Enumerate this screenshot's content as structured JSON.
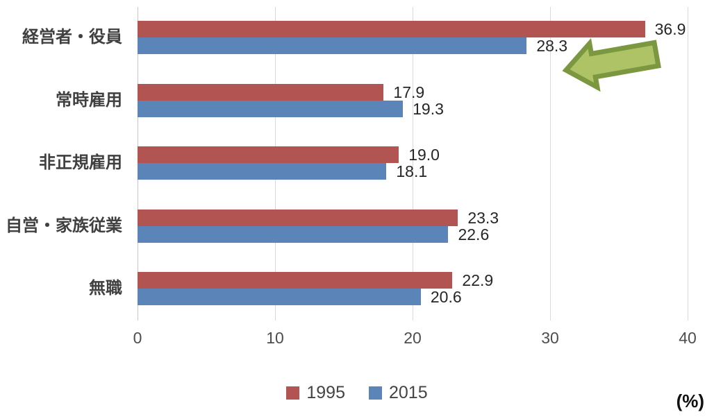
{
  "chart_data": {
    "type": "bar",
    "orientation": "horizontal",
    "title": "",
    "categories": [
      "経営者・役員",
      "常時雇用",
      "非正規雇用",
      "自営・家族従業",
      "無職"
    ],
    "series": [
      {
        "name": "1995",
        "color": "#b25451",
        "values": [
          36.9,
          17.9,
          19.0,
          23.3,
          22.9
        ],
        "labels": [
          "36.9",
          "17.9",
          "19.0",
          "23.3",
          "22.9"
        ]
      },
      {
        "name": "2015",
        "color": "#5b84b8",
        "values": [
          28.3,
          19.3,
          18.1,
          22.6,
          20.6
        ],
        "labels": [
          "28.3",
          "19.3",
          "18.1",
          "22.6",
          "20.6"
        ]
      }
    ],
    "xlim": [
      0,
      40
    ],
    "x_ticks": [
      "0",
      "10",
      "20",
      "30",
      "40"
    ],
    "unit_label": "(%)",
    "grid": true,
    "legend_position": "bottom",
    "annotation": {
      "icon": "left-arrow-icon",
      "fill_color": "#aec266",
      "border_color": "#7b9840",
      "points_at": "2015 経営者・役員 bar"
    }
  },
  "colors": {
    "gridline": "#d9d9d9",
    "category_text": "#404040",
    "value_text": "#262626",
    "tick_text": "#4d4d4d",
    "legend_text": "#444444"
  }
}
